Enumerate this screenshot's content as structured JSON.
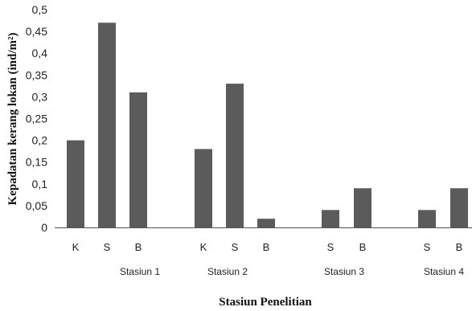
{
  "chart_data": {
    "type": "bar",
    "title": "",
    "xlabel": "Stasiun Penelitian",
    "ylabel": "Kepadatan kerang lokan (ind/m²)",
    "ylim": [
      0,
      0.5
    ],
    "yticks": [
      "0",
      "0,05",
      "0,1",
      "0,15",
      "0,2",
      "0,25",
      "0,3",
      "0,35",
      "0,4",
      "0,45",
      "0,5"
    ],
    "grid": false,
    "bar_color": "#5b5b5b",
    "groups": [
      {
        "name": "Stasiun 1",
        "categories": [
          "K",
          "S",
          "B"
        ],
        "values": [
          0.2,
          0.47,
          0.31
        ]
      },
      {
        "name": "Stasiun 2",
        "categories": [
          "K",
          "S",
          "B"
        ],
        "values": [
          0.18,
          0.33,
          0.02
        ]
      },
      {
        "name": "Stasiun 3",
        "categories": [
          "S",
          "B"
        ],
        "values": [
          0.04,
          0.09
        ]
      },
      {
        "name": "Stasiun 4",
        "categories": [
          "S",
          "B"
        ],
        "values": [
          0.04,
          0.09
        ]
      }
    ]
  }
}
